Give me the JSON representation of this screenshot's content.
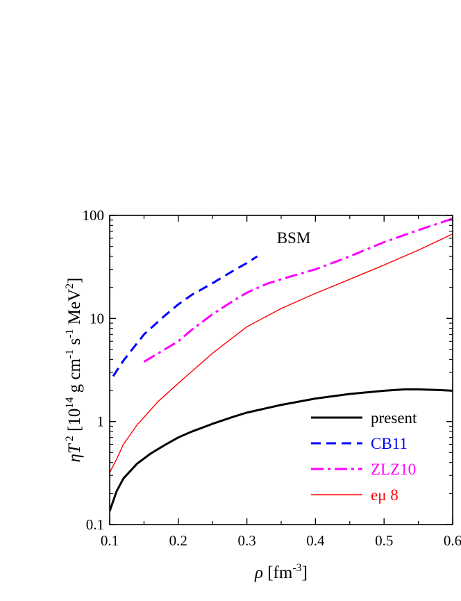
{
  "chart_data": {
    "type": "line",
    "title": "",
    "annotation": "BSM",
    "xlabel": {
      "symbol": "ρ",
      "text": "[fm",
      "exponent": "-3",
      "close": "]"
    },
    "ylabel": {
      "symbol": "ηT",
      "symbol_exp": "2",
      "parts": [
        {
          "t": "[10"
        },
        {
          "sup": "14"
        },
        {
          "t": "g cm"
        },
        {
          "sup": "-1"
        },
        {
          "t": "s"
        },
        {
          "sup": "-1"
        },
        {
          "t": "MeV"
        },
        {
          "sup": "2"
        },
        {
          "t": "]"
        }
      ]
    },
    "x_scale": "linear",
    "y_scale": "log",
    "xlim": [
      0.1,
      0.6
    ],
    "ylim": [
      0.1,
      100
    ],
    "x_ticks": [
      0.1,
      0.2,
      0.3,
      0.4,
      0.5,
      0.6
    ],
    "x_tick_labels": [
      "0.1",
      "0.2",
      "0.3",
      "0.4",
      "0.5",
      "0.6"
    ],
    "y_ticks": [
      0.1,
      1,
      10,
      100
    ],
    "y_tick_labels": [
      "0.1",
      "1",
      "10",
      "100"
    ],
    "grid": false,
    "legend_position": "bottom-right",
    "series": [
      {
        "name": "present",
        "color": "#000000",
        "dash": "solid",
        "width": 3,
        "x": [
          0.1,
          0.11,
          0.12,
          0.14,
          0.16,
          0.18,
          0.2,
          0.22,
          0.25,
          0.28,
          0.3,
          0.35,
          0.4,
          0.45,
          0.5,
          0.53,
          0.55,
          0.58,
          0.6
        ],
        "y": [
          0.135,
          0.21,
          0.28,
          0.39,
          0.49,
          0.59,
          0.7,
          0.8,
          0.95,
          1.11,
          1.22,
          1.45,
          1.67,
          1.85,
          1.99,
          2.05,
          2.05,
          2.02,
          1.99
        ]
      },
      {
        "name": "CB11",
        "color": "#0000ff",
        "dash": "dashed",
        "width": 3,
        "x": [
          0.105,
          0.12,
          0.15,
          0.18,
          0.2,
          0.22,
          0.25,
          0.28,
          0.3,
          0.315
        ],
        "y": [
          2.75,
          3.9,
          7.0,
          10.6,
          13.7,
          17.0,
          22.0,
          29.0,
          34.5,
          40.0
        ]
      },
      {
        "name": "ZLZ10",
        "color": "#ff00ff",
        "dash": "dashdot",
        "width": 3,
        "x": [
          0.15,
          0.18,
          0.2,
          0.22,
          0.25,
          0.28,
          0.3,
          0.33,
          0.35,
          0.4,
          0.45,
          0.5,
          0.55,
          0.6
        ],
        "y": [
          3.8,
          5.0,
          6.0,
          7.8,
          11.0,
          14.8,
          17.8,
          21.8,
          24.0,
          30.0,
          40.0,
          55.0,
          72.0,
          93.0
        ]
      },
      {
        "name": "eμ 8",
        "color": "#ff0000",
        "dash": "solid",
        "width": 1.4,
        "x": [
          0.1,
          0.11,
          0.12,
          0.14,
          0.15,
          0.17,
          0.2,
          0.25,
          0.3,
          0.35,
          0.4,
          0.45,
          0.5,
          0.55,
          0.6
        ],
        "y": [
          0.32,
          0.43,
          0.6,
          0.93,
          1.1,
          1.55,
          2.35,
          4.6,
          8.3,
          12.5,
          17.5,
          24.0,
          33.0,
          46.0,
          66.0
        ]
      }
    ]
  }
}
